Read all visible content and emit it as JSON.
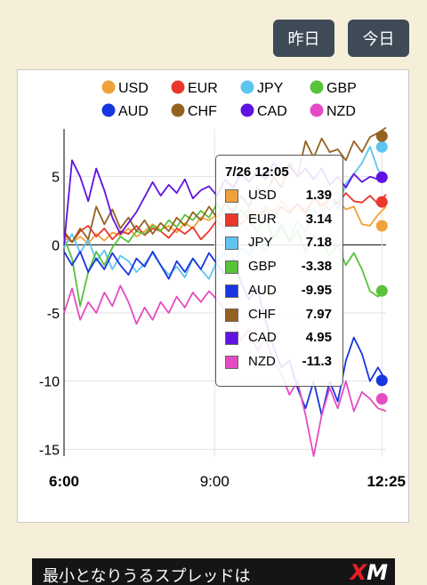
{
  "buttons": {
    "yesterday": "昨日",
    "today": "今日"
  },
  "colors": {
    "USD": "#f0a23a",
    "EUR": "#e8382c",
    "JPY": "#5ec5f0",
    "GBP": "#57c23a",
    "AUD": "#1736e0",
    "CHF": "#946220",
    "CAD": "#6012e0",
    "NZD": "#e54bc2"
  },
  "tooltip": {
    "title": "7/26 12:05",
    "rows": [
      {
        "code": "USD",
        "value": "1.39"
      },
      {
        "code": "EUR",
        "value": "3.14"
      },
      {
        "code": "JPY",
        "value": "7.18"
      },
      {
        "code": "GBP",
        "value": "-3.38"
      },
      {
        "code": "AUD",
        "value": "-9.95"
      },
      {
        "code": "CHF",
        "value": "7.97"
      },
      {
        "code": "CAD",
        "value": "4.95"
      },
      {
        "code": "NZD",
        "value": "-11.3"
      }
    ]
  },
  "ad": {
    "text": "最小となりうるスプレッドは",
    "logo_x": "X",
    "logo_m": "M"
  },
  "chart_data": {
    "type": "line",
    "x_ticks": [
      "6:00",
      "9:00",
      "12:25"
    ],
    "y_ticks": [
      5,
      0,
      -5,
      -10,
      -15
    ],
    "ylim": [
      -15.5,
      8.5
    ],
    "x_range_minutes": [
      0,
      385
    ],
    "hover_minute": 380,
    "legend": [
      "USD",
      "EUR",
      "JPY",
      "GBP",
      "AUD",
      "CHF",
      "CAD",
      "NZD"
    ],
    "legend_position": "top",
    "grid": true,
    "series": [
      {
        "name": "USD",
        "values": [
          0.5,
          0.2,
          0.6,
          0.1,
          0.8,
          0.3,
          0.9,
          0.7,
          1.2,
          0.6,
          1.0,
          1.5,
          1.1,
          1.4,
          0.9,
          1.6,
          1.2,
          2.0,
          1.8,
          2.2,
          1.6,
          2.5,
          2.0,
          2.6,
          2.1,
          2.8,
          2.4,
          3.2,
          2.5,
          3.0,
          2.2,
          3.6,
          3.0,
          2.6,
          3.2,
          2.6,
          2.8,
          1.5,
          1.4,
          2.2,
          2.8
        ]
      },
      {
        "name": "EUR",
        "values": [
          0.8,
          0.2,
          1.0,
          1.4,
          0.6,
          1.2,
          0.4,
          1.0,
          0.8,
          1.4,
          0.7,
          1.2,
          1.0,
          0.5,
          1.2,
          0.8,
          1.3,
          0.4,
          1.0,
          1.8,
          1.2,
          2.0,
          1.5,
          2.2,
          1.8,
          2.6,
          2.0,
          2.8,
          2.3,
          3.0,
          2.4,
          3.4,
          2.8,
          3.5,
          3.0,
          3.8,
          3.2,
          3.1,
          3.6,
          3.0,
          3.7
        ]
      },
      {
        "name": "JPY",
        "values": [
          -0.2,
          0.8,
          -0.6,
          0.4,
          -1.2,
          -0.4,
          -1.8,
          -0.8,
          -1.2,
          -2.0,
          -1.4,
          -0.6,
          -1.5,
          -2.2,
          -1.6,
          -2.4,
          -1.0,
          -1.8,
          -2.5,
          -1.2,
          -0.6,
          -1.4,
          -0.2,
          -0.8,
          0.3,
          -0.5,
          0.6,
          1.2,
          0.4,
          1.8,
          1.0,
          2.6,
          1.8,
          3.6,
          2.6,
          4.5,
          5.2,
          6.0,
          7.2,
          5.5,
          4.8
        ]
      },
      {
        "name": "GBP",
        "values": [
          0.5,
          -1.0,
          -4.5,
          -2.0,
          -0.5,
          -1.5,
          -0.2,
          0.6,
          0.2,
          1.0,
          0.8,
          1.4,
          1.0,
          1.8,
          1.3,
          2.2,
          1.8,
          2.5,
          2.0,
          3.0,
          2.2,
          1.5,
          2.6,
          1.8,
          1.0,
          2.0,
          0.5,
          1.5,
          0.2,
          1.0,
          -0.5,
          0.6,
          0.2,
          -0.8,
          0.0,
          -1.5,
          -0.6,
          -1.8,
          -3.4,
          -3.8,
          -3.2
        ]
      },
      {
        "name": "AUD",
        "values": [
          -0.5,
          -1.5,
          -0.5,
          -2.0,
          -1.0,
          -1.8,
          -0.6,
          -1.5,
          -2.2,
          -1.0,
          -1.6,
          -0.5,
          -1.5,
          -2.5,
          -1.2,
          -2.0,
          -1.0,
          -1.8,
          -0.6,
          -1.4,
          -2.2,
          -1.0,
          -2.8,
          -4.0,
          -3.2,
          -5.5,
          -7.5,
          -9.0,
          -8.5,
          -10.5,
          -12.0,
          -10.0,
          -12.5,
          -10.0,
          -11.5,
          -8.5,
          -6.8,
          -8.0,
          -10.0,
          -9.0,
          -10.0
        ]
      },
      {
        "name": "CHF",
        "values": [
          1.0,
          0.2,
          1.2,
          0.4,
          2.8,
          1.5,
          2.6,
          1.2,
          2.0,
          1.0,
          1.8,
          0.8,
          1.6,
          1.0,
          2.0,
          1.4,
          2.4,
          1.8,
          2.8,
          2.0,
          3.0,
          2.4,
          3.6,
          2.8,
          4.2,
          3.4,
          5.0,
          4.2,
          6.0,
          5.0,
          7.6,
          6.4,
          7.8,
          6.8,
          7.0,
          6.2,
          7.6,
          6.8,
          7.9,
          8.2,
          8.6
        ]
      },
      {
        "name": "CAD",
        "values": [
          0.0,
          6.2,
          5.0,
          3.2,
          5.6,
          4.0,
          2.0,
          0.8,
          1.6,
          2.4,
          3.5,
          4.6,
          3.6,
          4.4,
          3.8,
          4.8,
          3.4,
          4.0,
          4.3,
          3.6,
          4.8,
          4.2,
          5.2,
          4.6,
          5.4,
          4.8,
          6.0,
          5.2,
          5.8,
          5.0,
          5.6,
          4.8,
          5.6,
          4.4,
          5.0,
          4.2,
          5.2,
          4.6,
          5.0,
          4.8,
          5.0
        ]
      },
      {
        "name": "NZD",
        "values": [
          -5.0,
          -3.2,
          -5.5,
          -4.2,
          -5.0,
          -3.5,
          -4.5,
          -3.0,
          -4.2,
          -5.8,
          -4.6,
          -5.5,
          -4.2,
          -5.0,
          -3.8,
          -4.6,
          -3.5,
          -4.2,
          -3.4,
          -4.0,
          -4.8,
          -5.5,
          -7.0,
          -6.2,
          -7.8,
          -6.8,
          -8.5,
          -9.5,
          -11.0,
          -10.0,
          -12.5,
          -15.5,
          -12.5,
          -10.5,
          -12.0,
          -10.0,
          -12.2,
          -10.8,
          -11.3,
          -12.0,
          -12.2
        ]
      }
    ]
  }
}
